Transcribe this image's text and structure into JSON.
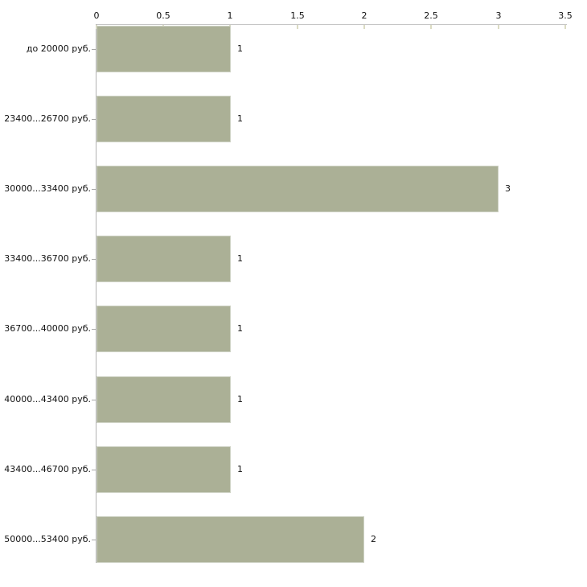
{
  "chart_data": {
    "type": "bar",
    "orientation": "horizontal",
    "title": "",
    "xlabel": "",
    "ylabel": "",
    "categories": [
      "до 20000 руб.",
      "23400...26700 руб.",
      "30000...33400 руб.",
      "33400...36700 руб.",
      "36700...40000 руб.",
      "40000...43400 руб.",
      "43400...46700 руб.",
      "50000...53400 руб."
    ],
    "values": [
      1,
      1,
      3,
      1,
      1,
      1,
      1,
      2
    ],
    "value_labels": [
      "1",
      "1",
      "3",
      "1",
      "1",
      "1",
      "1",
      "2"
    ],
    "xlim": [
      0,
      3.5
    ],
    "x_ticks": [
      0,
      0.5,
      1,
      1.5,
      2,
      2.5,
      3,
      3.5
    ],
    "x_tick_labels": [
      "0",
      "0.5",
      "1",
      "1.5",
      "2",
      "2.5",
      "3",
      "3.5"
    ],
    "axis_position": "top",
    "grid": false,
    "legend": false,
    "colors": {
      "background": "#ffffff",
      "bar_fill": "#abb096",
      "bar_border": "#ced2c4",
      "x_axis_line": "#c6c6c6",
      "y_axis_line": "#b3b3b3",
      "x_tick_mark": "#dbdbc3",
      "y_tick_mark": "#a6a6a6",
      "text": "#111111"
    }
  }
}
